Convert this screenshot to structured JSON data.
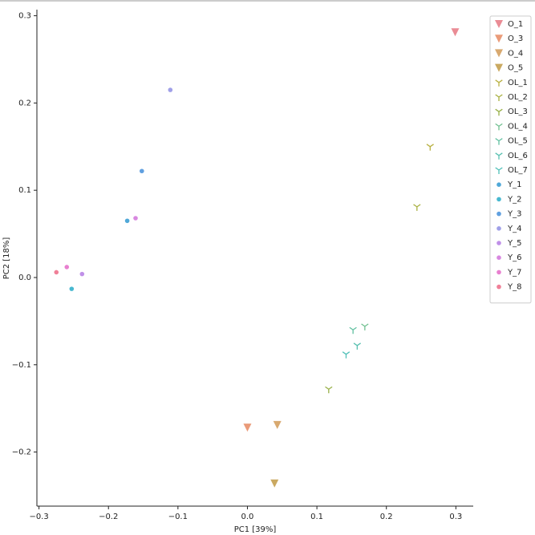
{
  "chart_data": {
    "type": "scatter",
    "xlabel": "PC1 [39%]",
    "ylabel": "PC2 [18%]",
    "xlim": [
      -0.303,
      0.325
    ],
    "ylim": [
      -0.262,
      0.307
    ],
    "xticks": [
      {
        "value": -0.3,
        "label": "−0.3"
      },
      {
        "value": -0.2,
        "label": "−0.2"
      },
      {
        "value": -0.1,
        "label": "−0.1"
      },
      {
        "value": 0,
        "label": "0.0"
      },
      0.1,
      0.2,
      0.3
    ],
    "yticks": [
      {
        "value": -0.2,
        "label": "−0.2"
      },
      {
        "value": -0.1,
        "label": "−0.1"
      },
      {
        "value": 0,
        "label": "0.0"
      },
      0.1,
      0.2,
      0.3
    ],
    "legend": "upper right",
    "series": [
      {
        "name": "O_1",
        "color": "#e8808a",
        "marker": "triangle_down",
        "x": [
          0.299
        ],
        "values": [
          0.281
        ]
      },
      {
        "name": "O_3",
        "color": "#e8906a",
        "marker": "triangle_down",
        "x": [
          0.0
        ],
        "values": [
          -0.172
        ]
      },
      {
        "name": "O_4",
        "color": "#d4a060",
        "marker": "triangle_down",
        "x": [
          0.043
        ],
        "values": [
          -0.169
        ]
      },
      {
        "name": "O_5",
        "color": "#c4a050",
        "marker": "triangle_down",
        "x": [
          0.039
        ],
        "values": [
          -0.236
        ]
      },
      {
        "name": "OL_1",
        "color": "#b8b040",
        "marker": "tri_up",
        "x": [
          0.263
        ],
        "values": [
          0.15
        ]
      },
      {
        "name": "OL_2",
        "color": "#a8b040",
        "marker": "tri_up",
        "x": [
          0.244
        ],
        "values": [
          0.081
        ]
      },
      {
        "name": "OL_3",
        "color": "#98b048",
        "marker": "tri_up",
        "x": [
          0.117
        ],
        "values": [
          -0.128
        ]
      },
      {
        "name": "OL_4",
        "color": "#70c090",
        "marker": "tri_up",
        "x": [
          0.169
        ],
        "values": [
          -0.056
        ]
      },
      {
        "name": "OL_5",
        "color": "#60c0a0",
        "marker": "tri_up",
        "x": [
          0.152
        ],
        "values": [
          -0.06
        ]
      },
      {
        "name": "OL_6",
        "color": "#58c0b0",
        "marker": "tri_up",
        "x": [
          0.158
        ],
        "values": [
          -0.078
        ]
      },
      {
        "name": "OL_7",
        "color": "#50c0b8",
        "marker": "tri_up",
        "x": [
          0.142
        ],
        "values": [
          -0.088
        ]
      },
      {
        "name": "Y_1",
        "color": "#50a8d8",
        "marker": "circle",
        "x": [
          -0.173
        ],
        "values": [
          0.065
        ]
      },
      {
        "name": "Y_2",
        "color": "#48b8d0",
        "marker": "circle",
        "x": [
          -0.253
        ],
        "values": [
          -0.013
        ]
      },
      {
        "name": "Y_3",
        "color": "#60a0e0",
        "marker": "circle",
        "x": [
          -0.152
        ],
        "values": [
          0.122
        ]
      },
      {
        "name": "Y_4",
        "color": "#a0a0e8",
        "marker": "circle",
        "x": [
          -0.111
        ],
        "values": [
          0.215
        ]
      },
      {
        "name": "Y_5",
        "color": "#c090e8",
        "marker": "circle",
        "x": [
          -0.238
        ],
        "values": [
          0.004
        ]
      },
      {
        "name": "Y_6",
        "color": "#d888e0",
        "marker": "circle",
        "x": [
          -0.161
        ],
        "values": [
          0.068
        ]
      },
      {
        "name": "Y_7",
        "color": "#e880d0",
        "marker": "circle",
        "x": [
          -0.26
        ],
        "values": [
          0.012
        ]
      },
      {
        "name": "Y_8",
        "color": "#f08098",
        "marker": "circle",
        "x": [
          -0.275
        ],
        "values": [
          0.006
        ]
      }
    ]
  }
}
